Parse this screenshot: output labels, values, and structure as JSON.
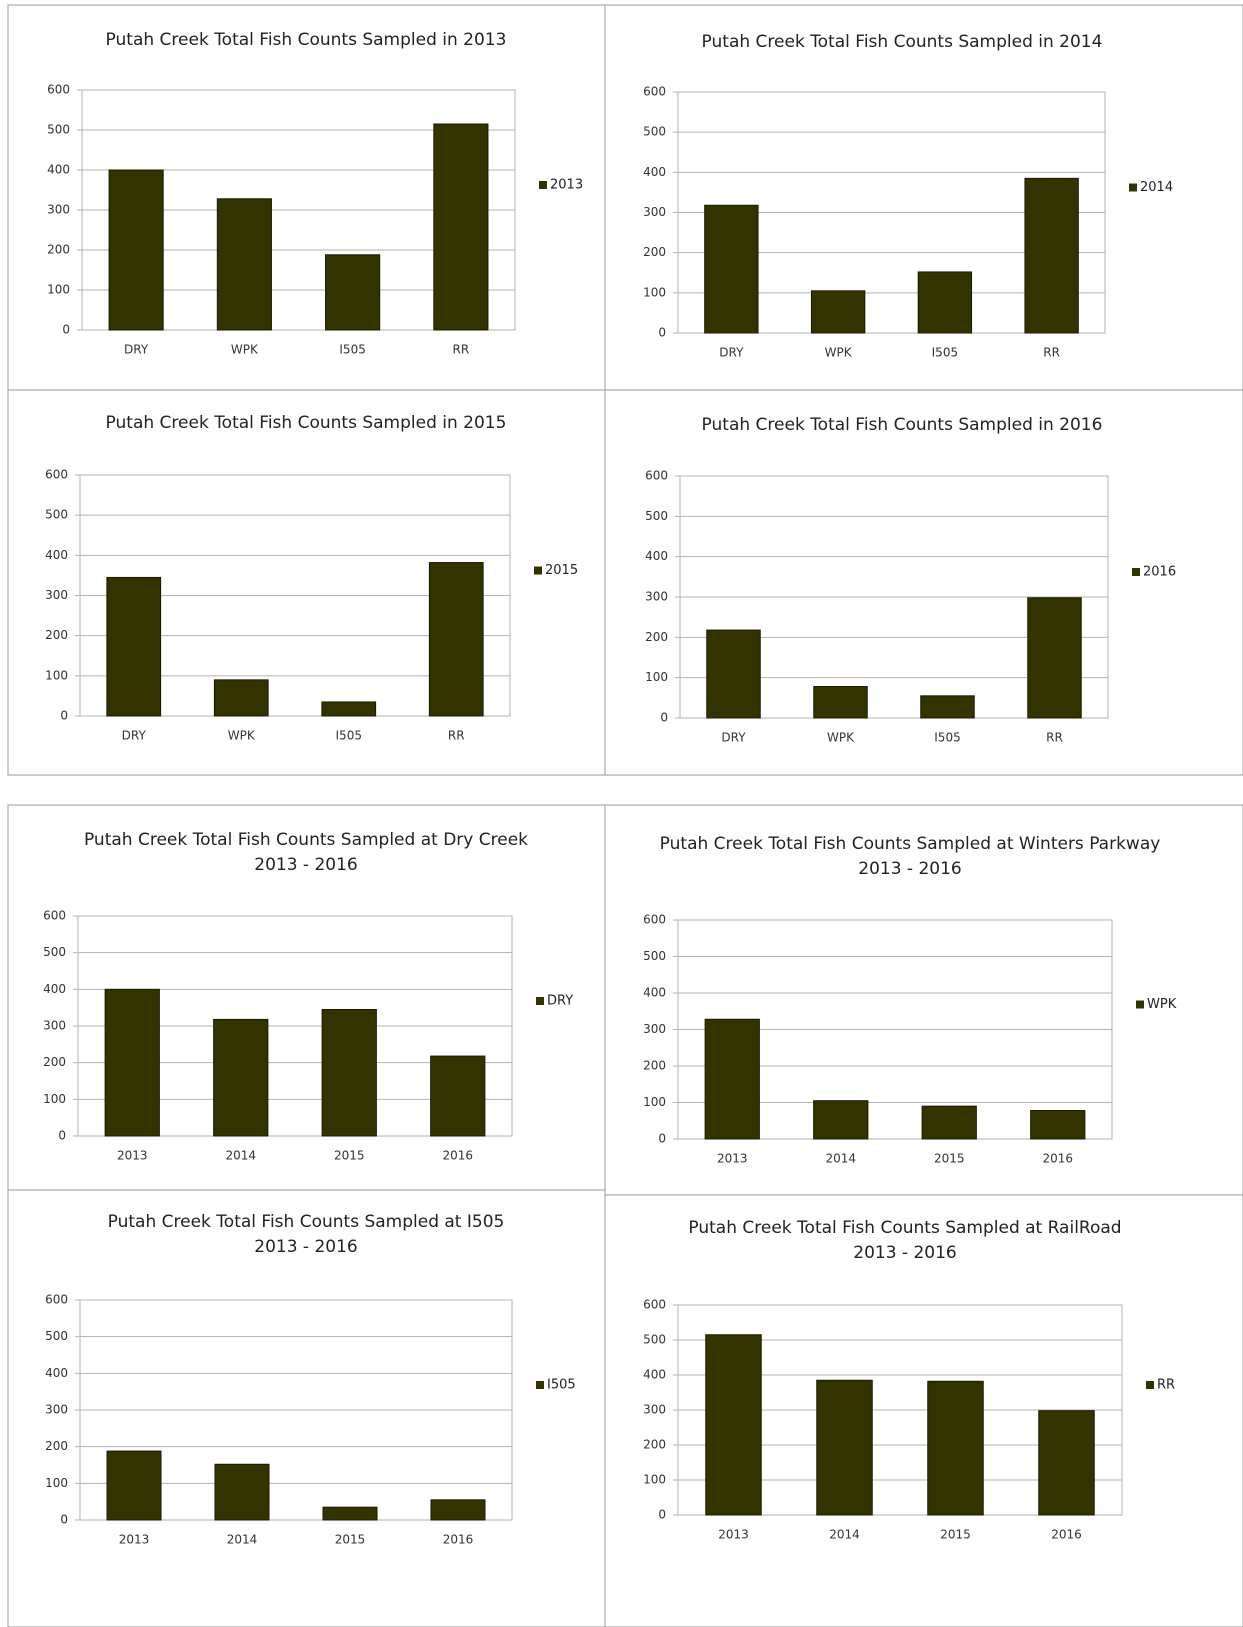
{
  "chart_data": [
    {
      "type": "bar",
      "title": "Putah Creek Total Fish Counts Sampled in 2013",
      "categories": [
        "DRY",
        "WPK",
        "I505",
        "RR"
      ],
      "series": [
        {
          "name": "2013",
          "color": "#333300",
          "values": [
            400,
            328,
            188,
            515
          ]
        }
      ],
      "ylim": [
        0,
        600
      ],
      "yticks": [
        0,
        100,
        200,
        300,
        400,
        500,
        600
      ],
      "grid": true,
      "legend": "right"
    },
    {
      "type": "bar",
      "title": "Putah Creek Total Fish Counts Sampled in 2014",
      "categories": [
        "DRY",
        "WPK",
        "I505",
        "RR"
      ],
      "series": [
        {
          "name": "2014",
          "color": "#333300",
          "values": [
            318,
            105,
            152,
            385
          ]
        }
      ],
      "ylim": [
        0,
        600
      ],
      "yticks": [
        0,
        100,
        200,
        300,
        400,
        500,
        600
      ],
      "grid": true,
      "legend": "right"
    },
    {
      "type": "bar",
      "title": "Putah Creek Total Fish Counts Sampled in 2015",
      "categories": [
        "DRY",
        "WPK",
        "I505",
        "RR"
      ],
      "series": [
        {
          "name": "2015",
          "color": "#333300",
          "values": [
            345,
            90,
            35,
            382
          ]
        }
      ],
      "ylim": [
        0,
        600
      ],
      "yticks": [
        0,
        100,
        200,
        300,
        400,
        500,
        600
      ],
      "grid": true,
      "legend": "right"
    },
    {
      "type": "bar",
      "title": "Putah Creek Total Fish Counts Sampled in 2016",
      "categories": [
        "DRY",
        "WPK",
        "I505",
        "RR"
      ],
      "series": [
        {
          "name": "2016",
          "color": "#333300",
          "values": [
            218,
            78,
            55,
            298
          ]
        }
      ],
      "ylim": [
        0,
        600
      ],
      "yticks": [
        0,
        100,
        200,
        300,
        400,
        500,
        600
      ],
      "grid": true,
      "legend": "right"
    },
    {
      "type": "bar",
      "title": "Putah Creek Total Fish Counts Sampled at Dry Creek",
      "subtitle": "2013 - 2016",
      "categories": [
        "2013",
        "2014",
        "2015",
        "2016"
      ],
      "series": [
        {
          "name": "DRY",
          "color": "#333300",
          "values": [
            400,
            318,
            345,
            218
          ]
        }
      ],
      "ylim": [
        0,
        600
      ],
      "yticks": [
        0,
        100,
        200,
        300,
        400,
        500,
        600
      ],
      "grid": true,
      "legend": "right"
    },
    {
      "type": "bar",
      "title": "Putah Creek Total Fish Counts Sampled at Winters Parkway",
      "subtitle": "2013 - 2016",
      "categories": [
        "2013",
        "2014",
        "2015",
        "2016"
      ],
      "series": [
        {
          "name": "WPK",
          "color": "#333300",
          "values": [
            328,
            105,
            90,
            78
          ]
        }
      ],
      "ylim": [
        0,
        600
      ],
      "yticks": [
        0,
        100,
        200,
        300,
        400,
        500,
        600
      ],
      "grid": true,
      "legend": "right"
    },
    {
      "type": "bar",
      "title": "Putah Creek Total Fish Counts Sampled at I505",
      "subtitle": "2013 - 2016",
      "categories": [
        "2013",
        "2014",
        "2015",
        "2016"
      ],
      "series": [
        {
          "name": "I505",
          "color": "#333300",
          "values": [
            188,
            152,
            35,
            55
          ]
        }
      ],
      "ylim": [
        0,
        600
      ],
      "yticks": [
        0,
        100,
        200,
        300,
        400,
        500,
        600
      ],
      "grid": true,
      "legend": "right"
    },
    {
      "type": "bar",
      "title": "Putah Creek Total Fish Counts Sampled at RailRoad",
      "subtitle": "2013 - 2016",
      "categories": [
        "2013",
        "2014",
        "2015",
        "2016"
      ],
      "series": [
        {
          "name": "RR",
          "color": "#333300",
          "values": [
            515,
            385,
            382,
            298
          ]
        }
      ],
      "ylim": [
        0,
        600
      ],
      "yticks": [
        0,
        100,
        200,
        300,
        400,
        500,
        600
      ],
      "grid": true,
      "legend": "right"
    }
  ]
}
